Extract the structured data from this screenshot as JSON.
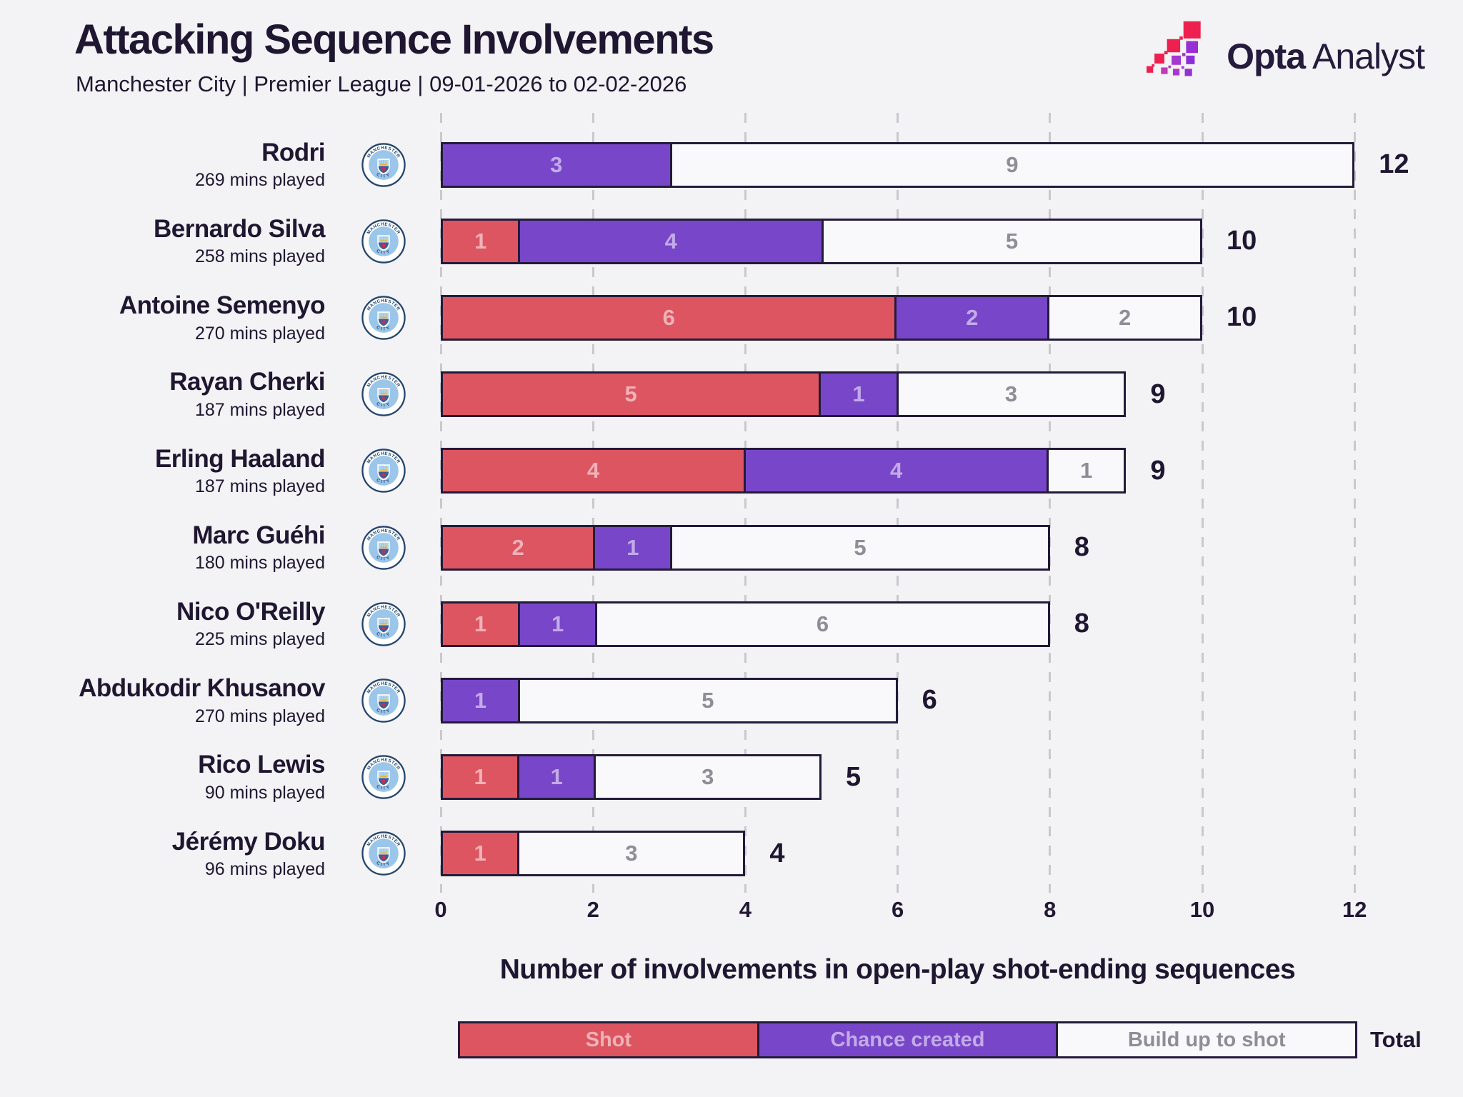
{
  "header": {
    "title": "Attacking Sequence Involvements",
    "subtitle": "Manchester City | Premier League | 09-01-2026 to 02-02-2026",
    "brand": {
      "name": "Opta",
      "suffix": "Analyst"
    }
  },
  "colors": {
    "background": "#f3f2f4",
    "ink": "#1f1731",
    "shot": "#dc5561",
    "chance_created": "#7846c9",
    "build_up_to_shot": "#f9f8fa",
    "bar_border": "#241a3a",
    "shot_value_text": "#efb2b7",
    "chance_value_text": "#c3abe9",
    "build_value_text": "#8f8e96",
    "gridline": "#c9c8cd",
    "badge_blue": "#9bc6e9",
    "badge_navy": "#24466f",
    "opta_red": "#ed2050",
    "opta_purple": "#9a32d6"
  },
  "chart_data": {
    "type": "bar",
    "orientation": "horizontal",
    "stacked": true,
    "title": "Attacking Sequence Involvements",
    "subtitle": "Manchester City | Premier League | 09-01-2026 to 02-02-2026",
    "xlabel": "Number of involvements in open-play shot-ending sequences",
    "x_ticks": [
      0,
      2,
      4,
      6,
      8,
      10,
      12
    ],
    "xlim": [
      0,
      12
    ],
    "grid": "vertical-dashed",
    "legend_position": "bottom",
    "series_names": [
      "Shot",
      "Chance created",
      "Build up to shot"
    ],
    "team_badge": "manchester-city",
    "players": [
      {
        "name": "Rodri",
        "mins": "269 mins played",
        "shot": 0,
        "chance_created": 3,
        "build_up": 9,
        "total": 12
      },
      {
        "name": "Bernardo Silva",
        "mins": "258 mins played",
        "shot": 1,
        "chance_created": 4,
        "build_up": 5,
        "total": 10
      },
      {
        "name": "Antoine Semenyo",
        "mins": "270 mins played",
        "shot": 6,
        "chance_created": 2,
        "build_up": 2,
        "total": 10
      },
      {
        "name": "Rayan Cherki",
        "mins": "187 mins played",
        "shot": 5,
        "chance_created": 1,
        "build_up": 3,
        "total": 9
      },
      {
        "name": "Erling Haaland",
        "mins": "187 mins played",
        "shot": 4,
        "chance_created": 4,
        "build_up": 1,
        "total": 9
      },
      {
        "name": "Marc Guéhi",
        "mins": "180 mins played",
        "shot": 2,
        "chance_created": 1,
        "build_up": 5,
        "total": 8
      },
      {
        "name": "Nico O'Reilly",
        "mins": "225 mins played",
        "shot": 1,
        "chance_created": 1,
        "build_up": 6,
        "total": 8
      },
      {
        "name": "Abdukodir Khusanov",
        "mins": "270 mins played",
        "shot": 0,
        "chance_created": 1,
        "build_up": 5,
        "total": 6
      },
      {
        "name": "Rico Lewis",
        "mins": "90 mins played",
        "shot": 1,
        "chance_created": 1,
        "build_up": 3,
        "total": 5
      },
      {
        "name": "Jérémy Doku",
        "mins": "96 mins played",
        "shot": 1,
        "chance_created": 0,
        "build_up": 3,
        "total": 4
      }
    ]
  },
  "legend": {
    "items": [
      {
        "label": "Shot"
      },
      {
        "label": "Chance created"
      },
      {
        "label": "Build up to shot"
      }
    ],
    "total_label": "Total"
  }
}
